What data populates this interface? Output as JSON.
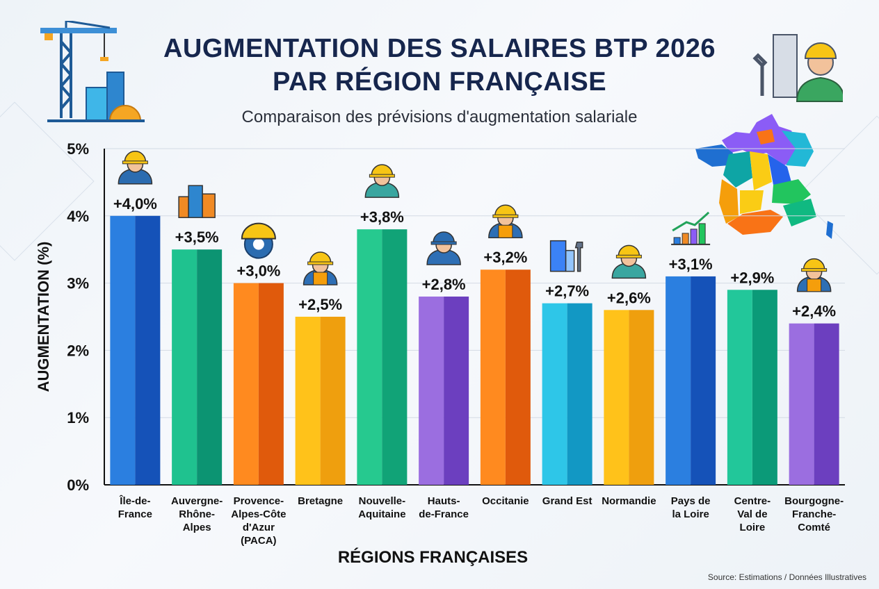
{
  "title_lines": [
    "AUGMENTATION DES SALAIRES BTP 2026",
    "PAR RÉGION FRANÇAISE"
  ],
  "subtitle": "Comparaison des prévisions d'augmentation salariale",
  "source": "Source: Estimations / Données Illustratives",
  "chart_data": {
    "type": "bar",
    "title": "AUGMENTATION DES SALAIRES BTP 2026 PAR RÉGION FRANÇAISE",
    "subtitle": "Comparaison des prévisions d'augmentation salariale",
    "xlabel": "RÉGIONS FRANÇAISES",
    "ylabel": "AUGMENTATION (%)",
    "ylim": [
      0,
      5
    ],
    "yticks": [
      "0%",
      "1%",
      "2%",
      "3%",
      "4%",
      "5%"
    ],
    "grid": true,
    "categories": [
      [
        "Île-de-",
        "France"
      ],
      [
        "Auvergne-",
        "Rhône-",
        "Alpes"
      ],
      [
        "Provence-",
        "Alpes-Côte",
        "d'Azur",
        "(PACA)"
      ],
      [
        "Bretagne"
      ],
      [
        "Nouvelle-",
        "Aquitaine"
      ],
      [
        "Hauts-",
        "de-France"
      ],
      [
        "Occitanie"
      ],
      [
        "Grand Est"
      ],
      [
        "Normandie"
      ],
      [
        "Pays de",
        "la Loire"
      ],
      [
        "Centre-",
        "Val de",
        "Loire"
      ],
      [
        "Bourgogne-",
        "Franche-",
        "Comté"
      ]
    ],
    "values": [
      4.0,
      3.5,
      3.0,
      2.5,
      3.8,
      2.8,
      3.2,
      2.7,
      2.6,
      3.1,
      2.9,
      2.4
    ],
    "value_labels": [
      "+4,0%",
      "+3,5%",
      "+3,0%",
      "+2,5%",
      "+3,8%",
      "+2,8%",
      "+3,2%",
      "+2,7%",
      "+2,6%",
      "+3,1%",
      "+2,9%",
      "+2,4%"
    ],
    "colors": [
      [
        "#2b7fe0",
        "#1552b8"
      ],
      [
        "#1fc28f",
        "#0c9472"
      ],
      [
        "#ff8a1f",
        "#e05a0c"
      ],
      [
        "#ffc21a",
        "#ef9f0e"
      ],
      [
        "#26c98f",
        "#11a377"
      ],
      [
        "#9b6ee0",
        "#6c3fbf"
      ],
      [
        "#ff8a1f",
        "#e05a0c"
      ],
      [
        "#2ec6e8",
        "#1298c4"
      ],
      [
        "#ffc21a",
        "#ef9f0e"
      ],
      [
        "#2b7fe0",
        "#1552b8"
      ],
      [
        "#22c79a",
        "#0b9a78"
      ],
      [
        "#9b6ee0",
        "#6c3fbf"
      ]
    ],
    "icons": [
      "worker-suit-icon",
      "building-icon",
      "hardhat-gear-icon",
      "worker-icon",
      "worker-woman-icon",
      "worker-blue-hat-icon",
      "worker-icon",
      "building-wrench-icon",
      "worker-woman-icon",
      "growth-chart-icon",
      "none",
      "worker-icon"
    ]
  }
}
